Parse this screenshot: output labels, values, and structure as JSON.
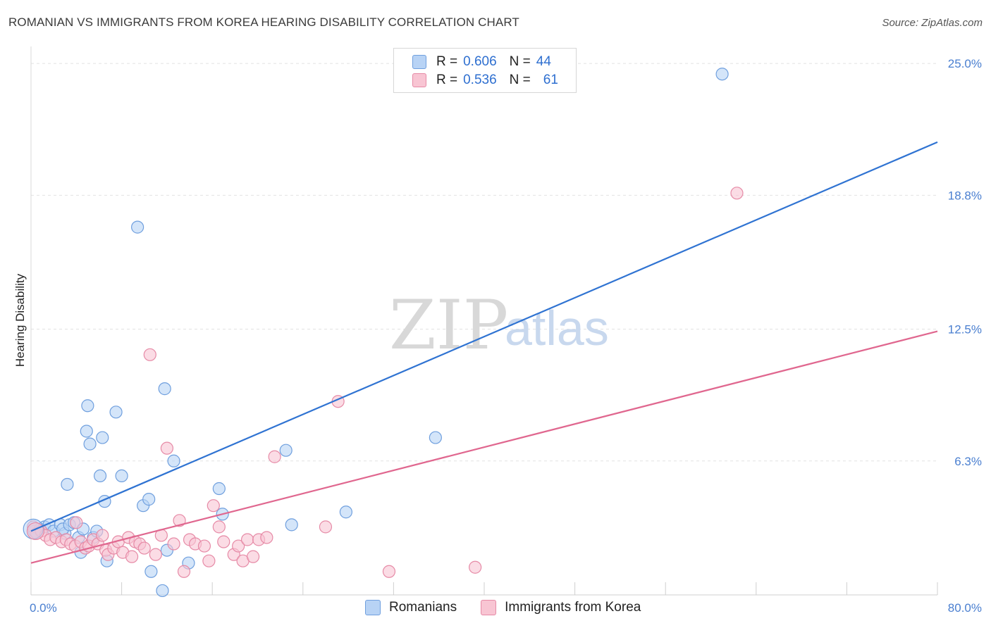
{
  "title": "ROMANIAN VS IMMIGRANTS FROM KOREA HEARING DISABILITY CORRELATION CHART",
  "source": "Source: ZipAtlas.com",
  "watermark": {
    "zip": "ZIP",
    "atlas": "atlas"
  },
  "legend": {
    "rows": [
      {
        "r_label": "R =",
        "r_value": "0.606",
        "n_label": "N =",
        "n_value": "44"
      },
      {
        "r_label": "R =",
        "r_value": "0.536",
        "n_label": "N =",
        "n_value": "61"
      }
    ]
  },
  "bottom_legend": [
    "Romanians",
    "Immigrants from Korea"
  ],
  "chart_data": {
    "type": "scatter",
    "title": "ROMANIAN VS IMMIGRANTS FROM KOREA HEARING DISABILITY CORRELATION CHART",
    "xlabel": "",
    "ylabel": "Hearing Disability",
    "xlim": [
      0,
      80
    ],
    "ylim": [
      0,
      25.6
    ],
    "x_tick_labels": [
      "0.0%",
      "80.0%"
    ],
    "y_ticks": [
      6.3,
      12.5,
      18.8,
      25.0
    ],
    "y_tick_labels": [
      "6.3%",
      "12.5%",
      "18.8%",
      "25.0%"
    ],
    "grid": true,
    "legend_position": "top-center",
    "colors": {
      "Romanians": {
        "fill": "#b8d3f5",
        "stroke": "#6f9fde",
        "line": "#2f73d2"
      },
      "Immigrants from Korea": {
        "fill": "#f8c5d3",
        "stroke": "#e68aa6",
        "line": "#e0678f"
      }
    },
    "series": [
      {
        "name": "Romanians",
        "r": 0.606,
        "n": 44,
        "trend": {
          "x": [
            0,
            80
          ],
          "y": [
            3.0,
            21.3
          ]
        },
        "points": [
          [
            0.3,
            3.0
          ],
          [
            0.5,
            2.9
          ],
          [
            0.8,
            3.1
          ],
          [
            1.2,
            3.2
          ],
          [
            1.6,
            3.3
          ],
          [
            2.0,
            3.0
          ],
          [
            2.6,
            3.3
          ],
          [
            3.0,
            2.9
          ],
          [
            2.8,
            3.1
          ],
          [
            3.4,
            3.3
          ],
          [
            3.2,
            5.2
          ],
          [
            3.8,
            3.4
          ],
          [
            4.2,
            2.7
          ],
          [
            4.4,
            2.0
          ],
          [
            4.6,
            3.1
          ],
          [
            5.0,
            8.9
          ],
          [
            4.9,
            7.7
          ],
          [
            5.2,
            7.1
          ],
          [
            5.5,
            2.7
          ],
          [
            5.8,
            3.0
          ],
          [
            6.1,
            5.6
          ],
          [
            6.3,
            7.4
          ],
          [
            6.5,
            4.4
          ],
          [
            6.7,
            1.6
          ],
          [
            7.5,
            8.6
          ],
          [
            8.0,
            5.6
          ],
          [
            9.4,
            17.3
          ],
          [
            9.9,
            4.2
          ],
          [
            10.4,
            4.5
          ],
          [
            10.6,
            1.1
          ],
          [
            11.6,
            0.2
          ],
          [
            11.8,
            9.7
          ],
          [
            12.0,
            2.1
          ],
          [
            12.6,
            6.3
          ],
          [
            13.9,
            1.5
          ],
          [
            16.6,
            5.0
          ],
          [
            16.9,
            3.8
          ],
          [
            22.5,
            6.8
          ],
          [
            23.0,
            3.3
          ],
          [
            27.8,
            3.9
          ],
          [
            35.7,
            7.4
          ],
          [
            61.0,
            24.5
          ]
        ]
      },
      {
        "name": "Immigrants from Korea",
        "r": 0.536,
        "n": 61,
        "trend": {
          "x": [
            0,
            80
          ],
          "y": [
            1.5,
            12.4
          ]
        },
        "points": [
          [
            0.2,
            3.2
          ],
          [
            0.5,
            2.9
          ],
          [
            0.9,
            3.0
          ],
          [
            1.3,
            2.8
          ],
          [
            1.7,
            2.6
          ],
          [
            2.2,
            2.7
          ],
          [
            2.7,
            2.5
          ],
          [
            3.1,
            2.6
          ],
          [
            3.5,
            2.4
          ],
          [
            3.9,
            2.3
          ],
          [
            4.0,
            3.4
          ],
          [
            4.4,
            2.5
          ],
          [
            4.8,
            2.2
          ],
          [
            5.1,
            2.3
          ],
          [
            5.5,
            2.6
          ],
          [
            5.9,
            2.4
          ],
          [
            6.3,
            2.8
          ],
          [
            6.6,
            2.1
          ],
          [
            6.8,
            1.9
          ],
          [
            7.3,
            2.2
          ],
          [
            7.7,
            2.5
          ],
          [
            8.1,
            2.0
          ],
          [
            8.6,
            2.7
          ],
          [
            8.9,
            1.8
          ],
          [
            9.2,
            2.5
          ],
          [
            9.6,
            2.4
          ],
          [
            10.0,
            2.2
          ],
          [
            10.5,
            11.3
          ],
          [
            11.0,
            1.9
          ],
          [
            11.5,
            2.8
          ],
          [
            12.0,
            6.9
          ],
          [
            12.6,
            2.4
          ],
          [
            13.1,
            3.5
          ],
          [
            13.5,
            1.1
          ],
          [
            14.0,
            2.6
          ],
          [
            14.5,
            2.4
          ],
          [
            15.3,
            2.3
          ],
          [
            15.7,
            1.6
          ],
          [
            16.1,
            4.2
          ],
          [
            16.6,
            3.2
          ],
          [
            17.0,
            2.5
          ],
          [
            17.9,
            1.9
          ],
          [
            18.3,
            2.3
          ],
          [
            18.7,
            1.6
          ],
          [
            19.1,
            2.6
          ],
          [
            19.6,
            1.8
          ],
          [
            20.1,
            2.6
          ],
          [
            20.8,
            2.7
          ],
          [
            21.5,
            6.5
          ],
          [
            26.0,
            3.2
          ],
          [
            27.1,
            9.1
          ],
          [
            31.6,
            1.1
          ],
          [
            39.2,
            1.3
          ],
          [
            62.3,
            18.9
          ]
        ]
      }
    ]
  }
}
